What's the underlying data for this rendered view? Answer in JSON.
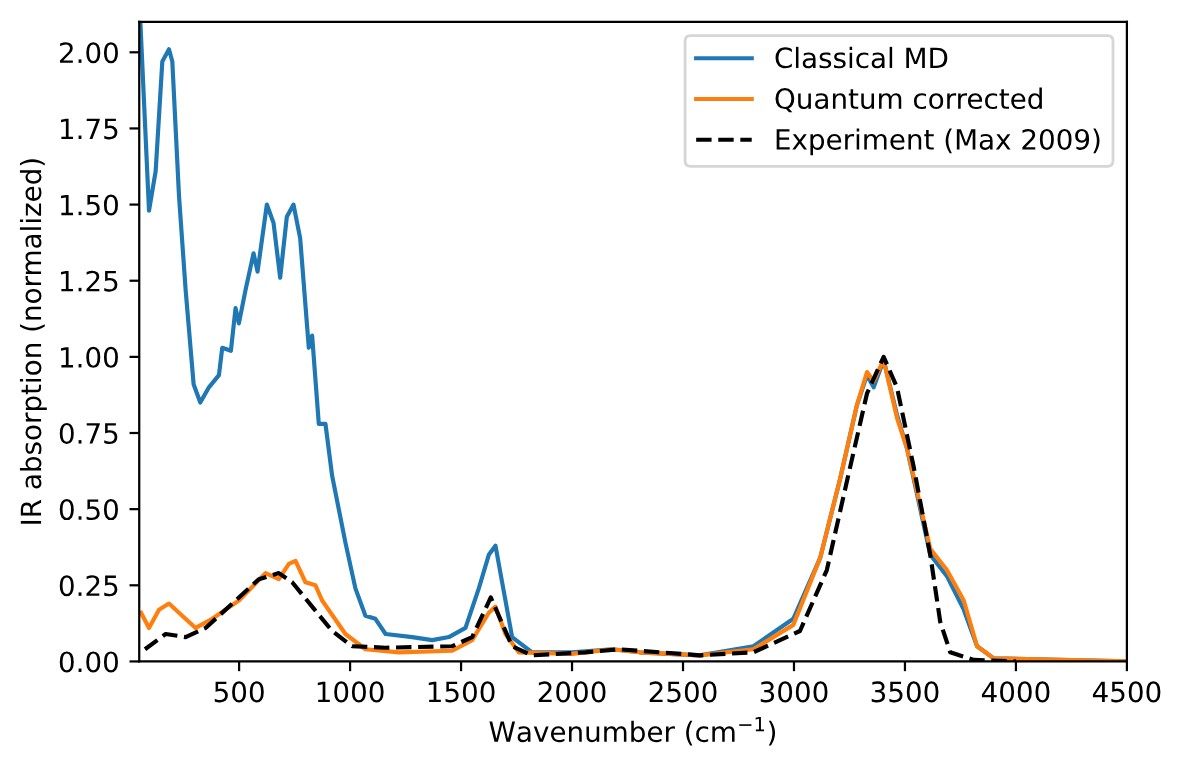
{
  "chart_data": {
    "type": "line",
    "xlabel": "Wavenumber (cm$^{−1}$)",
    "ylabel": "IR absorption (normalized)",
    "xlim": [
      50,
      4500
    ],
    "ylim": [
      0,
      2.1
    ],
    "xticks": [
      500,
      1000,
      1500,
      2000,
      2500,
      3000,
      3500,
      4000,
      4500
    ],
    "yticks": [
      {
        "value": 0,
        "label": "0.00"
      },
      {
        "value": 0.25,
        "label": "0.25"
      },
      {
        "value": 0.5,
        "label": "0.50"
      },
      {
        "value": 0.75,
        "label": "0.75"
      },
      {
        "value": 1,
        "label": "1.00"
      },
      {
        "value": 1.25,
        "label": "1.25"
      },
      {
        "value": 1.5,
        "label": "1.50"
      },
      {
        "value": 1.75,
        "label": "1.75"
      },
      {
        "value": 2,
        "label": "2.00"
      }
    ],
    "legend": "top right",
    "grid": false,
    "marker": "none",
    "series": [
      {
        "name": "Classical MD",
        "color": "#1f77b4",
        "line_style": "solid",
        "x": [
          55,
          94,
          124,
          154,
          184,
          199,
          229,
          259,
          295,
          325,
          364,
          409,
          424,
          463,
          484,
          499,
          529,
          565,
          583,
          625,
          655,
          685,
          715,
          745,
          775,
          814,
          829,
          859,
          889,
          919,
          979,
          1024,
          1069,
          1114,
          1160,
          1280,
          1370,
          1445,
          1520,
          1580,
          1625,
          1655,
          1685,
          1730,
          1820,
          2000,
          2180,
          2305,
          2576,
          2817,
          2997,
          3118,
          3208,
          3283,
          3329,
          3359,
          3404,
          3464,
          3509,
          3554,
          3614,
          3689,
          3765,
          3825,
          3900,
          4500
        ],
        "values": [
          2.1,
          1.48,
          1.61,
          1.97,
          2.01,
          1.97,
          1.53,
          1.22,
          0.91,
          0.85,
          0.9,
          0.94,
          1.03,
          1.02,
          1.16,
          1.11,
          1.22,
          1.34,
          1.28,
          1.5,
          1.44,
          1.26,
          1.46,
          1.5,
          1.39,
          1.03,
          1.07,
          0.78,
          0.78,
          0.61,
          0.39,
          0.24,
          0.15,
          0.14,
          0.09,
          0.08,
          0.07,
          0.08,
          0.11,
          0.24,
          0.35,
          0.38,
          0.26,
          0.08,
          0.03,
          0.03,
          0.04,
          0.03,
          0.02,
          0.05,
          0.14,
          0.34,
          0.6,
          0.84,
          0.94,
          0.9,
          0.99,
          0.81,
          0.7,
          0.55,
          0.35,
          0.28,
          0.17,
          0.05,
          0.01,
          0
        ]
      },
      {
        "name": "Quantum corrected",
        "color": "#ff7f0e",
        "line_style": "solid",
        "x": [
          58,
          94,
          139,
          184,
          229,
          304,
          379,
          499,
          619,
          679,
          724,
          754,
          799,
          844,
          874,
          979,
          1069,
          1220,
          1460,
          1550,
          1625,
          1655,
          1700,
          1760,
          2000,
          2180,
          2305,
          2576,
          2817,
          2997,
          3118,
          3208,
          3283,
          3329,
          3359,
          3404,
          3464,
          3509,
          3554,
          3614,
          3689,
          3765,
          3825,
          3900,
          4500
        ],
        "values": [
          0.16,
          0.11,
          0.17,
          0.19,
          0.16,
          0.11,
          0.14,
          0.2,
          0.29,
          0.27,
          0.32,
          0.33,
          0.26,
          0.25,
          0.2,
          0.09,
          0.04,
          0.03,
          0.035,
          0.07,
          0.16,
          0.18,
          0.09,
          0.03,
          0.025,
          0.04,
          0.03,
          0.02,
          0.04,
          0.12,
          0.34,
          0.6,
          0.84,
          0.95,
          0.92,
          0.99,
          0.8,
          0.7,
          0.56,
          0.37,
          0.3,
          0.2,
          0.05,
          0.01,
          0
        ]
      },
      {
        "name": "Experiment (Max 2009)",
        "color": "#000000",
        "line_style": "dashed",
        "x": [
          76,
          169,
          259,
          349,
          469,
          589,
          679,
          739,
          829,
          919,
          1009,
          1160,
          1460,
          1550,
          1634,
          1670,
          1730,
          1820,
          2060,
          2210,
          2305,
          2576,
          2817,
          3027,
          3148,
          3238,
          3329,
          3404,
          3464,
          3539,
          3614,
          3659,
          3704,
          3810,
          4000
        ],
        "values": [
          0.04,
          0.09,
          0.08,
          0.11,
          0.19,
          0.27,
          0.29,
          0.26,
          0.18,
          0.1,
          0.05,
          0.045,
          0.05,
          0.08,
          0.21,
          0.15,
          0.05,
          0.02,
          0.03,
          0.04,
          0.035,
          0.02,
          0.03,
          0.1,
          0.3,
          0.59,
          0.88,
          1.0,
          0.9,
          0.64,
          0.35,
          0.13,
          0.03,
          0.005,
          0
        ]
      }
    ]
  }
}
